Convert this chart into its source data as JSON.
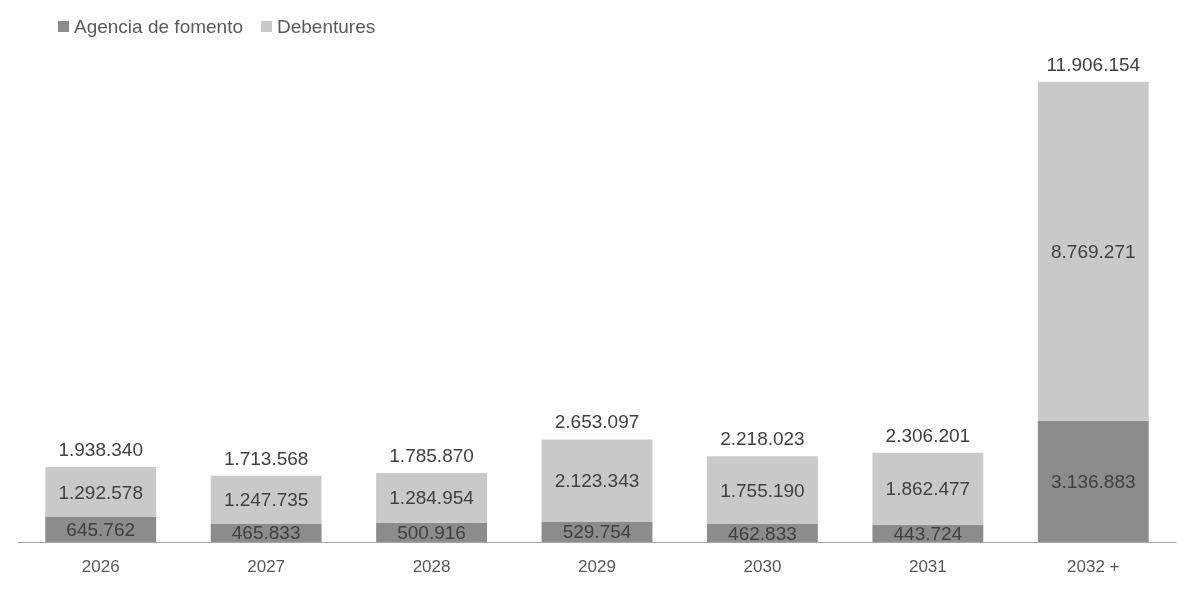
{
  "chart_data": {
    "type": "bar",
    "stacked": true,
    "categories": [
      "2026",
      "2027",
      "2028",
      "2029",
      "2030",
      "2031",
      "2032 +"
    ],
    "series": [
      {
        "name": "Agencia de fomento",
        "color": "#8c8c8c",
        "values": [
          645762,
          465833,
          500916,
          529754,
          462833,
          443724,
          3136883
        ],
        "value_labels": [
          "645.762",
          "465.833",
          "500.916",
          "529.754",
          "462.833",
          "443.724",
          "3.136.883"
        ]
      },
      {
        "name": "Debentures",
        "color": "#c9c9c9",
        "values": [
          1292578,
          1247735,
          1284954,
          2123343,
          1755190,
          1862477,
          8769271
        ],
        "value_labels": [
          "1.292.578",
          "1.247.735",
          "1.284.954",
          "2.123.343",
          "1.755.190",
          "1.862.477",
          "8.769.271"
        ]
      }
    ],
    "totals": [
      "1.938.340",
      "1.713.568",
      "1.785.870",
      "2.653.097",
      "2.218.023",
      "2.306.201",
      "11.906.154"
    ],
    "legend": "top left",
    "grid": false
  }
}
